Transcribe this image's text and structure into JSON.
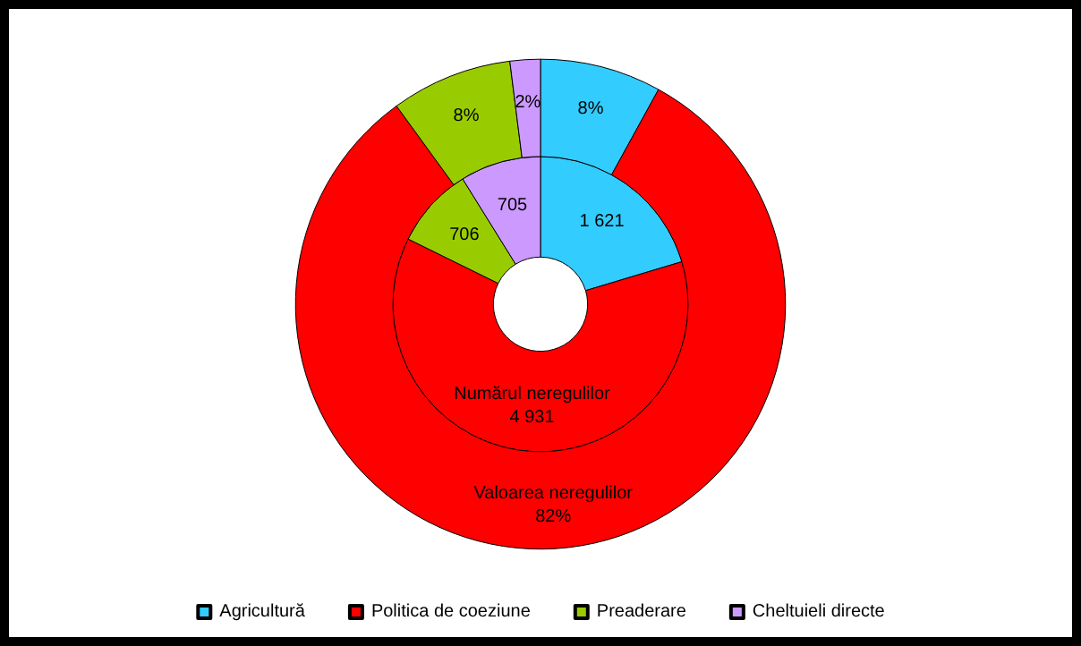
{
  "chart_data": {
    "type": "donut",
    "categories": [
      "Agricultură",
      "Politica de coeziune",
      "Preaderare",
      "Cheltuieli directe"
    ],
    "colors": [
      "#33ccff",
      "#ff0000",
      "#99cc00",
      "#cc99ff"
    ],
    "series": [
      {
        "name": "Numărul neregulilor",
        "values": [
          1621,
          4931,
          706,
          705
        ],
        "value_labels": [
          "1 621",
          "4 931",
          "706",
          "705"
        ]
      },
      {
        "name": "Valoarea neregulilor",
        "values": [
          8,
          82,
          8,
          2
        ],
        "value_labels": [
          "8%",
          "82%",
          "8%",
          "2%"
        ]
      }
    ],
    "legend": "bottom"
  }
}
